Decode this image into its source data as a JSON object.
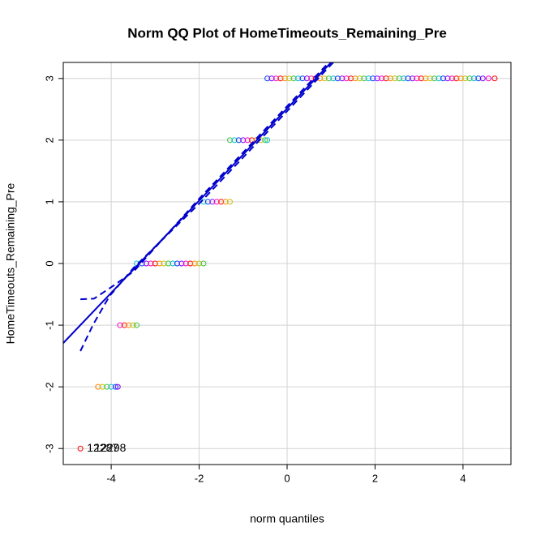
{
  "chart_data": {
    "type": "scatter",
    "title": "Norm QQ Plot of HomeTimeouts_Remaining_Pre",
    "x_label": "norm quantiles",
    "y_label": "HomeTimeouts_Remaining_Pre",
    "xlim": [
      -5.09,
      5.09
    ],
    "ylim": [
      -3.26,
      3.26
    ],
    "xticks": [
      -4,
      -2,
      0,
      2,
      4
    ],
    "yticks": [
      -3,
      -2,
      -1,
      0,
      1,
      2,
      3
    ],
    "grid": true,
    "point_colors": [
      "#ff0000",
      "#ff8000",
      "#c0c000",
      "#40c040",
      "#00c0c0",
      "#0040ff",
      "#8000ff",
      "#ff00c0"
    ],
    "series": [
      {
        "x": [
          -4.7
        ],
        "y": [
          -3
        ]
      },
      {
        "x": [
          -4.3,
          -4.2,
          -4.1,
          -4.0,
          -3.9,
          -3.85
        ],
        "y": [
          -2,
          -2,
          -2,
          -2,
          -2,
          -2
        ]
      },
      {
        "x": [
          -3.8,
          -3.7,
          -3.6,
          -3.5,
          -3.42
        ],
        "y": [
          -1,
          -1,
          -1,
          -1,
          -1
        ]
      },
      {
        "x": [
          -3.42,
          -3.3,
          -3.2,
          -3.1,
          -3.0,
          -2.9,
          -2.8,
          -2.7,
          -2.6,
          -2.5,
          -2.4,
          -2.3,
          -2.2,
          -2.1,
          -2.0,
          -1.9
        ],
        "y": [
          0,
          0,
          0,
          0,
          0,
          0,
          0,
          0,
          0,
          0,
          0,
          0,
          0,
          0,
          0,
          0
        ]
      },
      {
        "x": [
          -1.9,
          -1.8,
          -1.7,
          -1.6,
          -1.5,
          -1.4,
          -1.3
        ],
        "y": [
          1,
          1,
          1,
          1,
          1,
          1,
          1
        ]
      },
      {
        "x": [
          -1.3,
          -1.2,
          -1.1,
          -1.0,
          -0.9,
          -0.8,
          -0.7,
          -0.6,
          -0.5,
          -0.45
        ],
        "y": [
          2,
          2,
          2,
          2,
          2,
          2,
          2,
          2,
          2,
          2
        ]
      },
      {
        "x": [
          -0.45,
          -0.35,
          -0.25,
          -0.15,
          -0.05,
          0.05,
          0.15,
          0.25,
          0.35,
          0.45,
          0.55,
          0.65,
          0.75,
          0.85,
          0.95,
          1.05,
          1.15,
          1.25,
          1.35,
          1.45,
          1.55,
          1.65,
          1.75,
          1.85,
          1.95,
          2.05,
          2.15,
          2.25,
          2.35,
          2.45,
          2.55,
          2.65,
          2.75,
          2.85,
          2.95,
          3.05,
          3.15,
          3.25,
          3.35,
          3.45,
          3.55,
          3.65,
          3.75,
          3.85,
          3.95,
          4.05,
          4.15,
          4.25,
          4.35,
          4.45,
          4.58,
          4.72
        ],
        "y": [
          3,
          3,
          3,
          3,
          3,
          3,
          3,
          3,
          3,
          3,
          3,
          3,
          3,
          3,
          3,
          3,
          3,
          3,
          3,
          3,
          3,
          3,
          3,
          3,
          3,
          3,
          3,
          3,
          3,
          3,
          3,
          3,
          3,
          3,
          3,
          3,
          3,
          3,
          3,
          3,
          3,
          3,
          3,
          3,
          3,
          3,
          3,
          3,
          3,
          3,
          3,
          3
        ]
      }
    ],
    "reference_line": {
      "x": [
        -5.09,
        1.0
      ],
      "y": [
        -1.29,
        3.26
      ],
      "color": "#0000cd"
    },
    "envelope": [
      {
        "x": [
          -4.7,
          -4.39,
          -3.95,
          -3.49,
          -2,
          0,
          0.95
        ],
        "y": [
          -0.58,
          -0.57,
          -0.36,
          -0.13,
          1.05,
          2.55,
          3.26
        ],
        "color": "#0000cd"
      },
      {
        "x": [
          -4.7,
          -4.41,
          -4.04,
          -3.49,
          -2,
          0,
          1.05
        ],
        "y": [
          -1.42,
          -0.99,
          -0.53,
          -0.07,
          0.97,
          2.47,
          3.26
        ],
        "color": "#0000cd"
      }
    ],
    "annotations": [
      {
        "text": "12287",
        "x": -4.55,
        "y": -3
      },
      {
        "text": "12298",
        "x": -4.38,
        "y": -3
      }
    ]
  }
}
